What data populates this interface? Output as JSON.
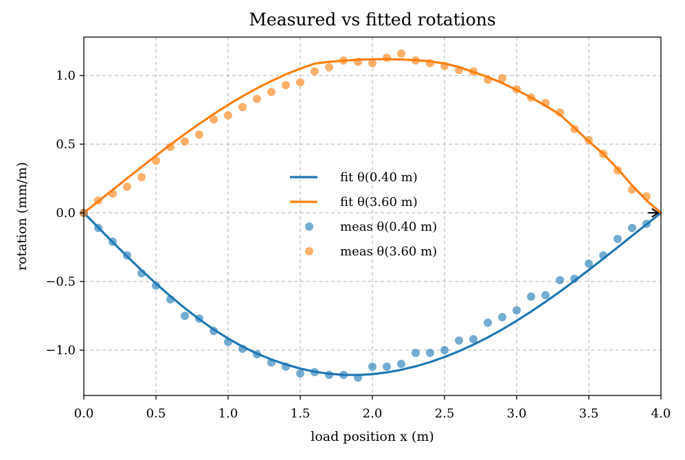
{
  "chart_data": {
    "type": "line",
    "title": "Measured vs fitted rotations",
    "xlabel": "load position x (m)",
    "ylabel": "rotation (mm/m)",
    "xlim": [
      0.0,
      4.0
    ],
    "ylim": [
      -1.33,
      1.28
    ],
    "xticks": [
      0.0,
      0.5,
      1.0,
      1.5,
      2.0,
      2.5,
      3.0,
      3.5,
      4.0
    ],
    "xtick_labels": [
      "0.0",
      "0.5",
      "1.0",
      "1.5",
      "2.0",
      "2.5",
      "3.0",
      "3.5",
      "4.0"
    ],
    "yticks": [
      -1.0,
      -0.5,
      0.0,
      0.5,
      1.0
    ],
    "ytick_labels": [
      "−1.0",
      "−0.5",
      "0.0",
      "0.5",
      "1.0"
    ],
    "grid": true,
    "legend_position": "center",
    "series": [
      {
        "name": "fit θ(0.40 m)",
        "kind": "line",
        "color": "#1f77b4",
        "x": [
          0.0,
          0.1,
          0.2,
          0.3,
          0.4,
          0.5,
          0.6,
          0.7,
          0.8,
          0.9,
          1.0,
          1.1,
          1.2,
          1.3,
          1.4,
          1.5,
          1.6,
          1.7,
          1.8,
          1.9,
          2.0,
          2.1,
          2.2,
          2.3,
          2.4,
          2.5,
          2.6,
          2.7,
          2.8,
          2.9,
          3.0,
          3.1,
          3.2,
          3.3,
          3.4,
          3.5,
          3.6,
          3.7,
          3.8,
          3.9,
          4.0
        ],
        "y": [
          0.0,
          -0.107,
          -0.213,
          -0.317,
          -0.418,
          -0.515,
          -0.607,
          -0.694,
          -0.775,
          -0.849,
          -0.915,
          -0.974,
          -1.025,
          -1.068,
          -1.104,
          -1.134,
          -1.157,
          -1.172,
          -1.18,
          -1.181,
          -1.175,
          -1.162,
          -1.143,
          -1.118,
          -1.087,
          -1.05,
          -1.008,
          -0.96,
          -0.907,
          -0.849,
          -0.786,
          -0.719,
          -0.648,
          -0.574,
          -0.496,
          -0.416,
          -0.334,
          -0.251,
          -0.167,
          -0.084,
          0.0
        ]
      },
      {
        "name": "fit θ(3.60 m)",
        "kind": "line",
        "color": "#ff7f0e",
        "x": [
          0.0,
          0.1,
          0.2,
          0.3,
          0.4,
          0.5,
          0.6,
          0.7,
          0.8,
          0.9,
          1.0,
          1.1,
          1.2,
          1.3,
          1.4,
          1.5,
          1.6,
          1.7,
          1.8,
          1.9,
          2.0,
          2.1,
          2.2,
          2.3,
          2.4,
          2.5,
          2.6,
          2.7,
          2.8,
          2.9,
          3.0,
          3.1,
          3.2,
          3.3,
          3.4,
          3.5,
          3.6,
          3.7,
          3.8,
          3.9,
          4.0
        ],
        "y": [
          0.0,
          0.084,
          0.167,
          0.251,
          0.334,
          0.416,
          0.496,
          0.574,
          0.648,
          0.719,
          0.786,
          0.849,
          0.907,
          0.96,
          1.008,
          1.05,
          1.087,
          1.1,
          1.108,
          1.115,
          1.118,
          1.119,
          1.117,
          1.112,
          1.103,
          1.088,
          1.062,
          1.025,
          0.99,
          0.945,
          0.895,
          0.84,
          0.78,
          0.715,
          0.62,
          0.52,
          0.43,
          0.32,
          0.2,
          0.09,
          0.0
        ]
      },
      {
        "name": "meas θ(0.40 m)",
        "kind": "scatter",
        "color": "#1f77b4",
        "x": [
          0.0,
          0.1,
          0.2,
          0.3,
          0.4,
          0.5,
          0.6,
          0.7,
          0.8,
          0.9,
          1.0,
          1.1,
          1.2,
          1.3,
          1.4,
          1.5,
          1.6,
          1.7,
          1.8,
          1.9,
          2.0,
          2.1,
          2.2,
          2.3,
          2.4,
          2.5,
          2.6,
          2.7,
          2.8,
          2.9,
          3.0,
          3.1,
          3.2,
          3.3,
          3.4,
          3.5,
          3.6,
          3.7,
          3.8,
          3.9
        ],
        "y": [
          0.0,
          -0.11,
          -0.21,
          -0.31,
          -0.44,
          -0.53,
          -0.63,
          -0.75,
          -0.77,
          -0.86,
          -0.94,
          -0.99,
          -1.03,
          -1.09,
          -1.12,
          -1.17,
          -1.16,
          -1.18,
          -1.18,
          -1.2,
          -1.12,
          -1.12,
          -1.1,
          -1.02,
          -1.02,
          -1.0,
          -0.93,
          -0.92,
          -0.8,
          -0.76,
          -0.71,
          -0.61,
          -0.6,
          -0.49,
          -0.48,
          -0.37,
          -0.31,
          -0.19,
          -0.11,
          -0.08
        ]
      },
      {
        "name": "meas θ(3.60 m)",
        "kind": "scatter",
        "color": "#ff7f0e",
        "x": [
          0.0,
          0.1,
          0.2,
          0.3,
          0.4,
          0.5,
          0.6,
          0.7,
          0.8,
          0.9,
          1.0,
          1.1,
          1.2,
          1.3,
          1.4,
          1.5,
          1.6,
          1.7,
          1.8,
          1.9,
          2.0,
          2.1,
          2.2,
          2.3,
          2.4,
          2.5,
          2.6,
          2.7,
          2.8,
          2.9,
          3.0,
          3.1,
          3.2,
          3.3,
          3.4,
          3.5,
          3.6,
          3.7,
          3.8,
          3.9
        ],
        "y": [
          0.0,
          0.09,
          0.14,
          0.19,
          0.26,
          0.38,
          0.48,
          0.52,
          0.57,
          0.68,
          0.71,
          0.77,
          0.83,
          0.88,
          0.93,
          0.95,
          1.03,
          1.06,
          1.11,
          1.1,
          1.09,
          1.13,
          1.16,
          1.11,
          1.09,
          1.07,
          1.04,
          1.03,
          0.97,
          0.98,
          0.9,
          0.84,
          0.8,
          0.73,
          0.61,
          0.53,
          0.43,
          0.31,
          0.17,
          0.12
        ]
      }
    ],
    "annotations": [
      {
        "type": "arrow",
        "from": [
          3.91,
          0.0
        ],
        "to": [
          3.98,
          0.0
        ],
        "color": "#000000"
      }
    ]
  }
}
